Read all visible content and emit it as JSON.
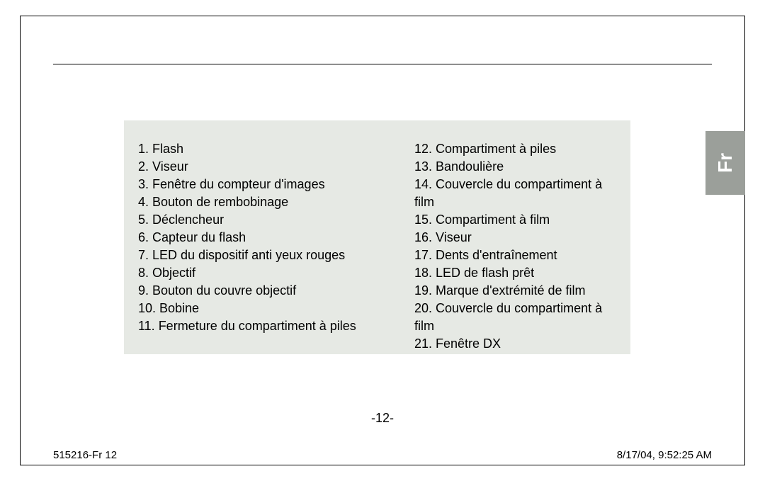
{
  "lang_tab": "Fr",
  "page_number": "-12-",
  "footer": {
    "left": "515216-Fr   12",
    "right": "8/17/04, 9:52:25 AM"
  },
  "list": {
    "left": [
      "1. Flash",
      "2. Viseur",
      "3. Fenêtre du compteur d'images",
      "4. Bouton de rembobinage",
      "5. Déclencheur",
      "6. Capteur du flash",
      "7. LED  du dispositif anti yeux rouges",
      "8. Objectif",
      "9. Bouton du couvre objectif",
      "10. Bobine",
      "11. Fermeture du compartiment à piles"
    ],
    "right": [
      "12. Compartiment à piles",
      "13. Bandoulière",
      "14. Couvercle du compartiment à film",
      "15. Compartiment à film",
      "16. Viseur",
      "17. Dents d'entraînement",
      "18. LED de flash prêt",
      "19. Marque d'extrémité de film",
      "20. Couvercle du compartiment à film",
      "21. Fenêtre DX"
    ]
  }
}
